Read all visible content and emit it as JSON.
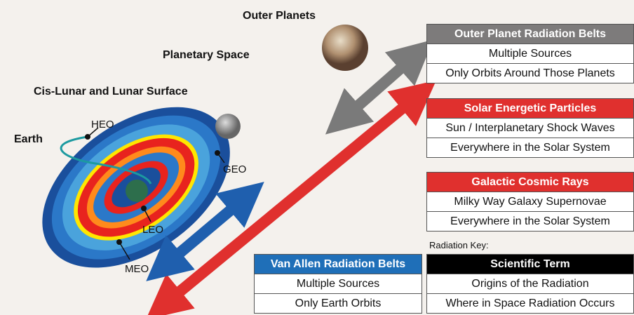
{
  "labels": {
    "outer_planets": "Outer Planets",
    "planetary_space": "Planetary Space",
    "cis_lunar": "Cis-Lunar and Lunar Surface",
    "earth": "Earth"
  },
  "orbits": [
    "HEO",
    "GEO",
    "LEO",
    "MEO"
  ],
  "boxes": [
    {
      "title": "Outer Planet Radiation Belts",
      "rows": [
        "Multiple Sources",
        "Only Orbits Around Those Planets"
      ]
    },
    {
      "title": "Solar Energetic Particles",
      "rows": [
        "Sun / Interplanetary Shock Waves",
        "Everywhere in the Solar System"
      ]
    },
    {
      "title": "Galactic Cosmic Rays",
      "rows": [
        "Milky Way Galaxy Supernovae",
        "Everywhere in the Solar System"
      ]
    },
    {
      "title": "Van Allen Radiation Belts",
      "rows": [
        "Multiple Sources",
        "Only Earth Orbits"
      ]
    },
    {
      "title": "Scientific Term",
      "rows": [
        "Origins of the Radiation",
        "Where in Space Radiation Occurs"
      ]
    }
  ],
  "key_label": "Radiation Key:"
}
